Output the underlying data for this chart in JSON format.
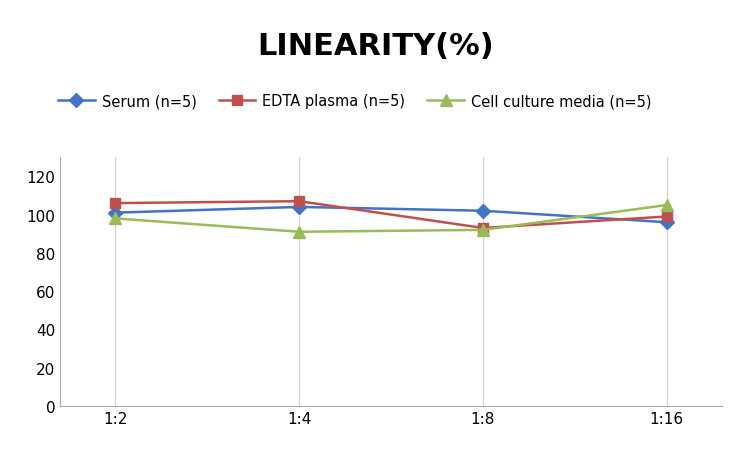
{
  "title": "LINEARITY(%)",
  "title_fontsize": 22,
  "title_fontweight": "bold",
  "x_labels": [
    "1:2",
    "1:4",
    "1:8",
    "1:16"
  ],
  "x_positions": [
    0,
    1,
    2,
    3
  ],
  "series": [
    {
      "label": "Serum (n=5)",
      "values": [
        101,
        104,
        102,
        96
      ],
      "color": "#4472C4",
      "marker": "D",
      "markersize": 7,
      "linewidth": 1.8
    },
    {
      "label": "EDTA plasma (n=5)",
      "values": [
        106,
        107,
        93,
        99
      ],
      "color": "#C0504D",
      "marker": "s",
      "markersize": 7,
      "linewidth": 1.8
    },
    {
      "label": "Cell culture media (n=5)",
      "values": [
        98,
        91,
        92,
        105
      ],
      "color": "#9BBB59",
      "marker": "^",
      "markersize": 8,
      "linewidth": 1.8
    }
  ],
  "ylim": [
    0,
    130
  ],
  "yticks": [
    0,
    20,
    40,
    60,
    80,
    100,
    120
  ],
  "grid_color": "#D0D0D0",
  "background_color": "#FFFFFF",
  "legend_fontsize": 10.5,
  "tick_fontsize": 11
}
